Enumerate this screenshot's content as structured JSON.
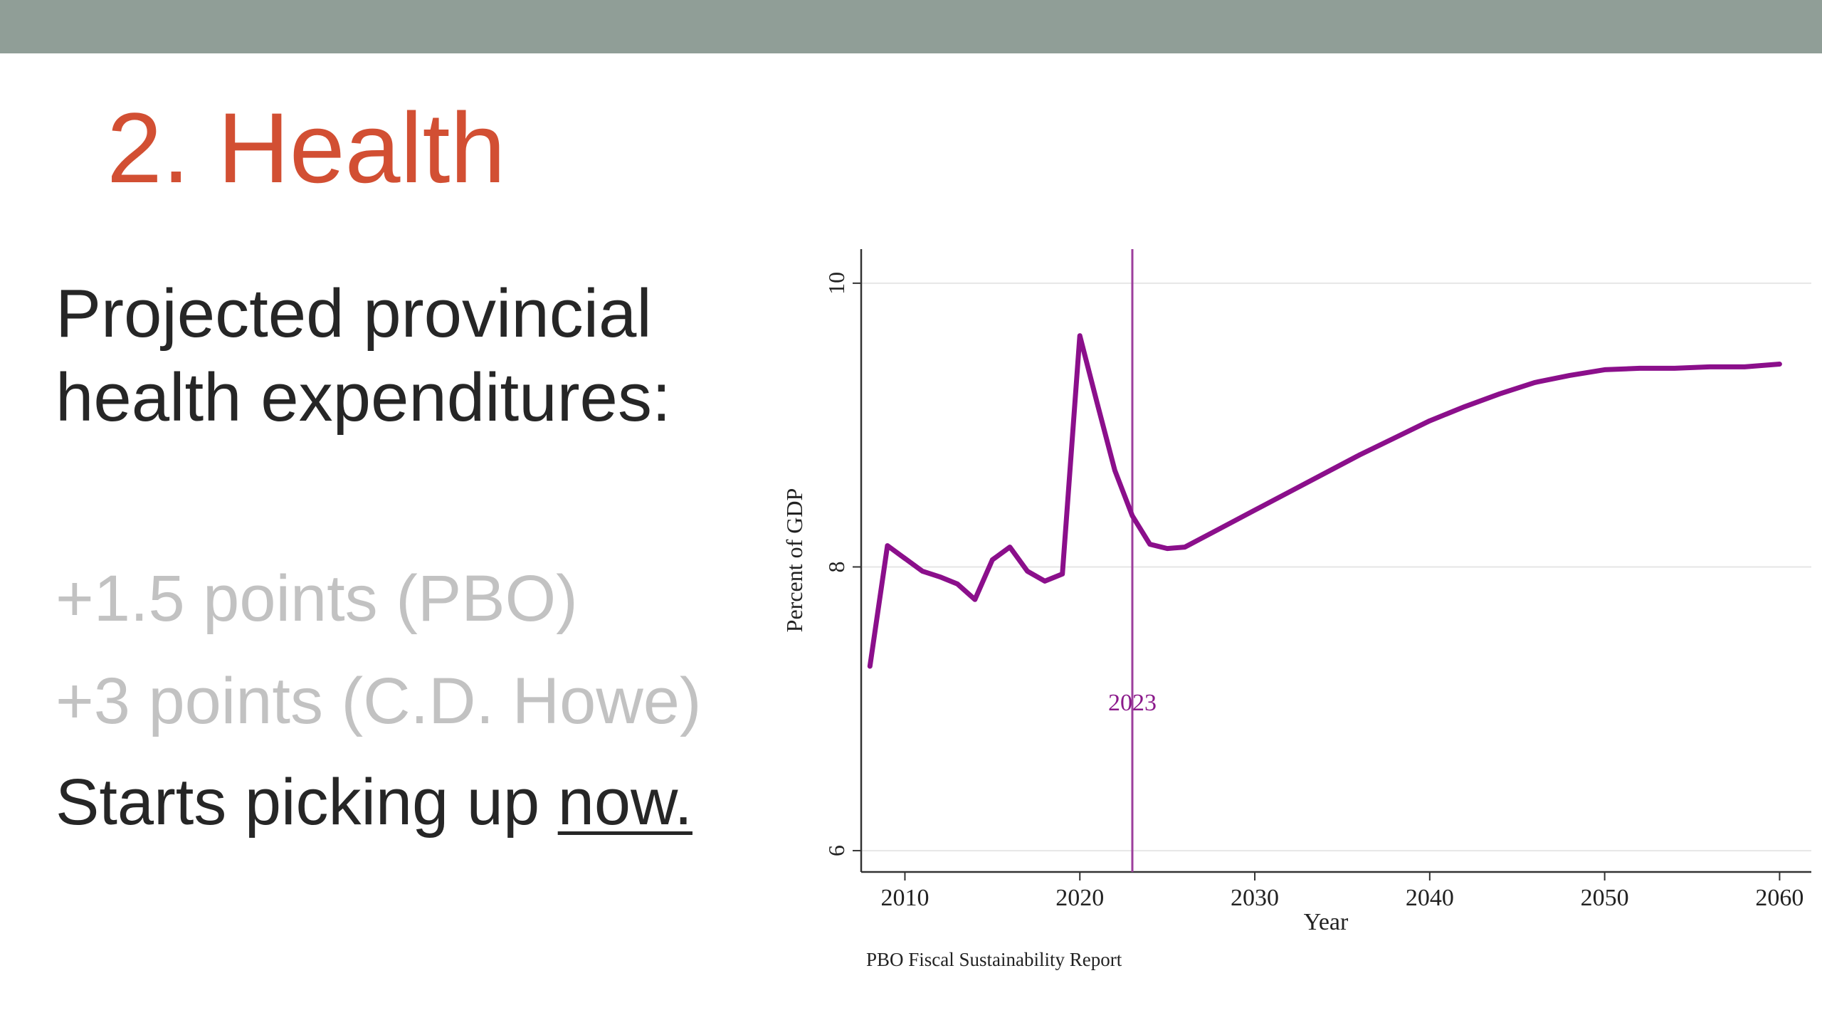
{
  "slide": {
    "title": "2. Health",
    "line1": "Projected provincial",
    "line2": "health expenditures:",
    "line3": "+1.5 points (PBO)",
    "line4": "+3 points (C.D. Howe)",
    "line5_prefix": "Starts picking up ",
    "line5_underlined": "now."
  },
  "colors": {
    "top_bar": "#909e97",
    "title": "#d24f33",
    "series": "#8b0f8b"
  },
  "chart_data": {
    "type": "line",
    "title": "",
    "xlabel": "Year",
    "ylabel": "Percent of GDP",
    "source": "PBO Fiscal Sustainability Report",
    "xlim": [
      2007.5,
      2061
    ],
    "ylim": [
      5.9,
      10.2
    ],
    "xticks": [
      2010,
      2020,
      2030,
      2040,
      2050,
      2060
    ],
    "yticks": [
      6,
      8,
      10
    ],
    "grid": true,
    "legend": "none",
    "annotation": {
      "x": 2023,
      "label": "2023"
    },
    "series": [
      {
        "name": "",
        "x": [
          2008,
          2009,
          2010,
          2011,
          2012,
          2013,
          2014,
          2015,
          2016,
          2017,
          2018,
          2019,
          2020,
          2021,
          2022,
          2023,
          2024,
          2025,
          2026,
          2028,
          2030,
          2032,
          2034,
          2036,
          2038,
          2040,
          2042,
          2044,
          2046,
          2048,
          2050,
          2052,
          2054,
          2056,
          2058,
          2060
        ],
        "y": [
          7.3,
          8.15,
          8.06,
          7.97,
          7.93,
          7.88,
          7.77,
          8.05,
          8.14,
          7.97,
          7.9,
          7.95,
          9.63,
          9.15,
          8.68,
          8.36,
          8.16,
          8.13,
          8.14,
          8.27,
          8.4,
          8.53,
          8.66,
          8.79,
          8.91,
          9.03,
          9.13,
          9.22,
          9.3,
          9.35,
          9.39,
          9.4,
          9.4,
          9.41,
          9.41,
          9.43
        ]
      }
    ]
  }
}
